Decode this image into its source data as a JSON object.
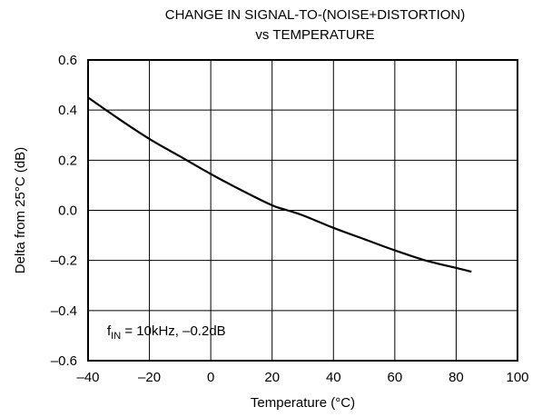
{
  "chart_data": {
    "type": "line",
    "title_line1": "CHANGE IN SIGNAL-TO-(NOISE+DISTORTION)",
    "title_line2": "vs TEMPERATURE",
    "xlabel": "Temperature (°C)",
    "ylabel": "Delta from 25°C (dB)",
    "xlim": [
      -40,
      100
    ],
    "ylim": [
      -0.6,
      0.6
    ],
    "xticks": [
      "–40",
      "–20",
      "0",
      "20",
      "40",
      "60",
      "80",
      "100"
    ],
    "yticks": [
      "0.6",
      "0.4",
      "0.2",
      "0.0",
      "–0.2",
      "–0.4",
      "–0.6"
    ],
    "grid": true,
    "annotation": {
      "f": "f",
      "sub": "IN",
      "rest": " = 10kHz, –0.2dB"
    },
    "series": [
      {
        "x": [
          -40,
          -30,
          -20,
          -10,
          0,
          10,
          20,
          25,
          30,
          40,
          50,
          60,
          70,
          80,
          85
        ],
        "y": [
          0.45,
          0.365,
          0.285,
          0.215,
          0.145,
          0.08,
          0.02,
          0.0,
          -0.02,
          -0.07,
          -0.115,
          -0.16,
          -0.2,
          -0.23,
          -0.245
        ]
      }
    ]
  }
}
